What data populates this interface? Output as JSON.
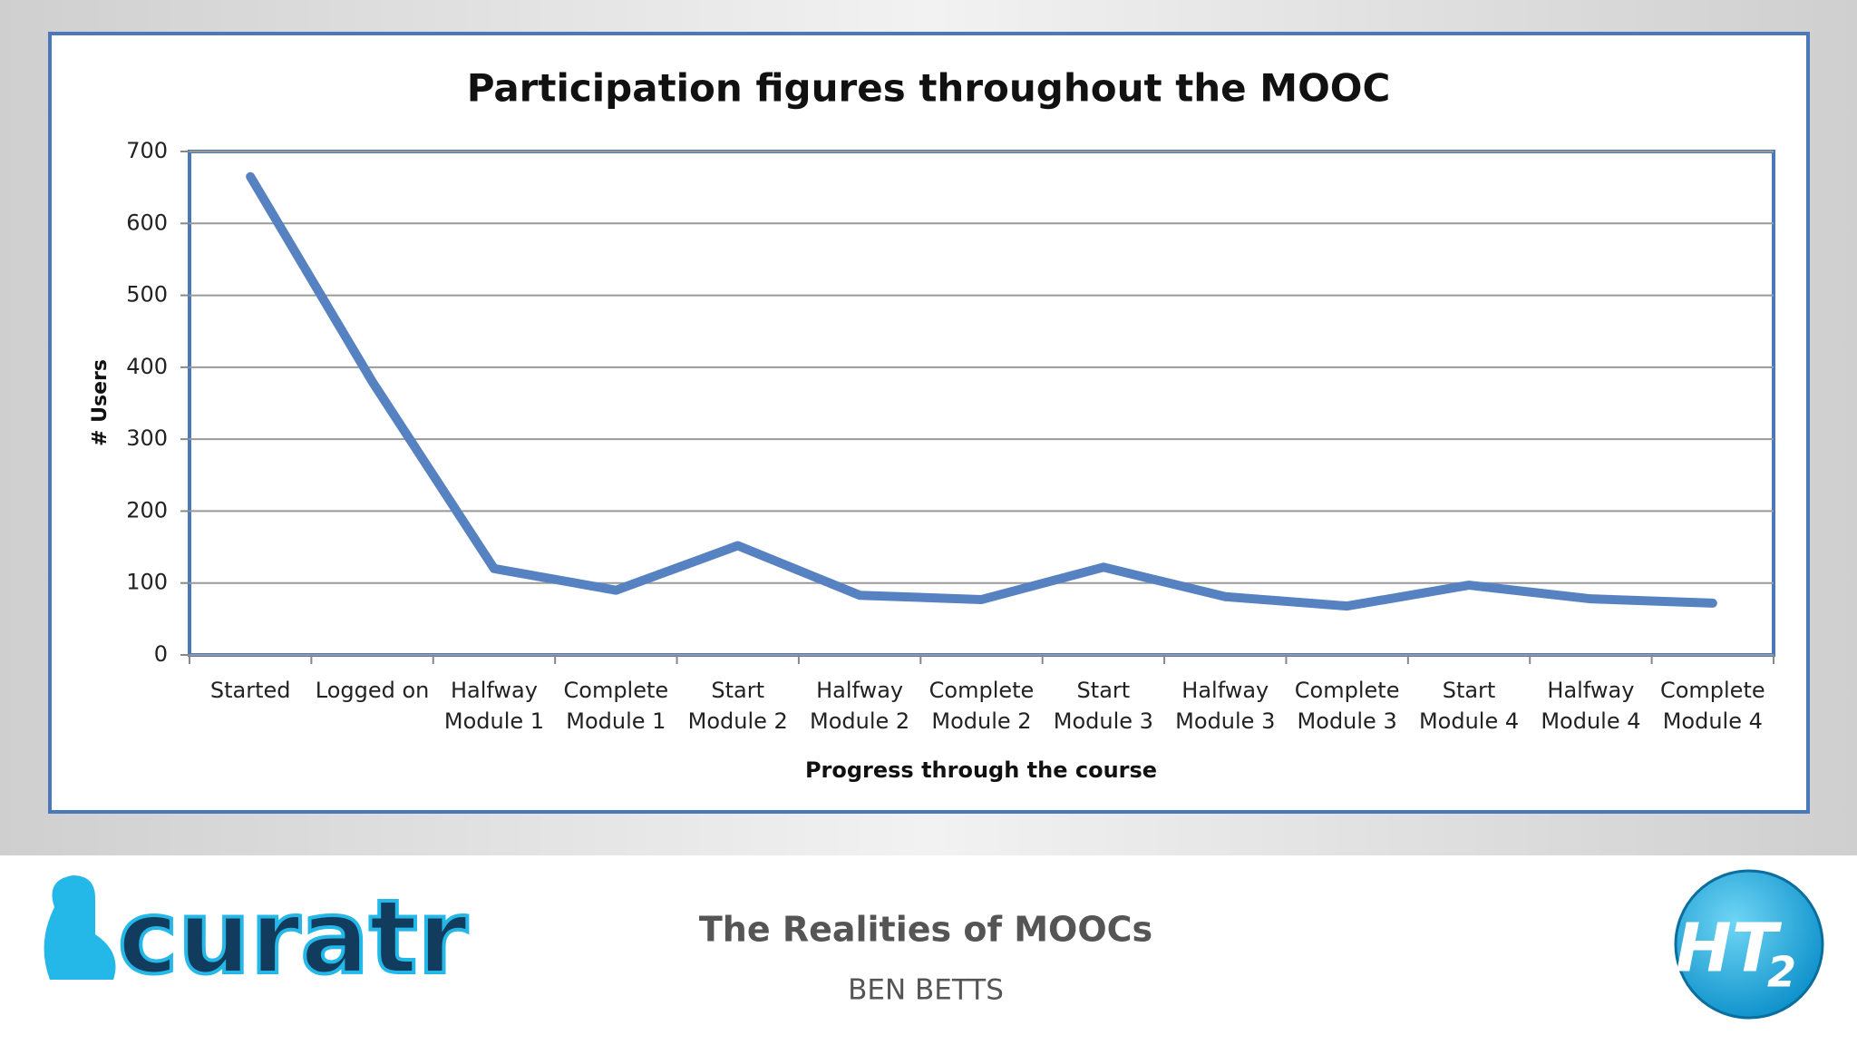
{
  "chart_data": {
    "type": "line",
    "title": "Participation figures throughout the MOOC",
    "x_label": "Progress through the course",
    "y_label": "# Users",
    "categories": [
      "Started",
      "Logged on",
      "Halfway Module 1",
      "Complete Module 1",
      "Start Module 2",
      "Halfway Module 2",
      "Complete Module 2",
      "Start Module 3",
      "Halfway Module 3",
      "Complete Module 3",
      "Start Module 4",
      "Halfway Module 4",
      "Complete Module 4"
    ],
    "values": [
      665,
      380,
      120,
      90,
      152,
      83,
      77,
      122,
      81,
      68,
      97,
      78,
      72
    ],
    "color": "#5682c2",
    "ylim": [
      0,
      700
    ],
    "yticks": [
      0,
      100,
      200,
      300,
      400,
      500,
      600,
      700
    ],
    "grid": true
  },
  "footer": {
    "title": "The Realities of MOOCs",
    "author": "BEN BETTS",
    "left_logo": "curatr",
    "right_logo": "HT",
    "right_logo_sub": "2"
  }
}
